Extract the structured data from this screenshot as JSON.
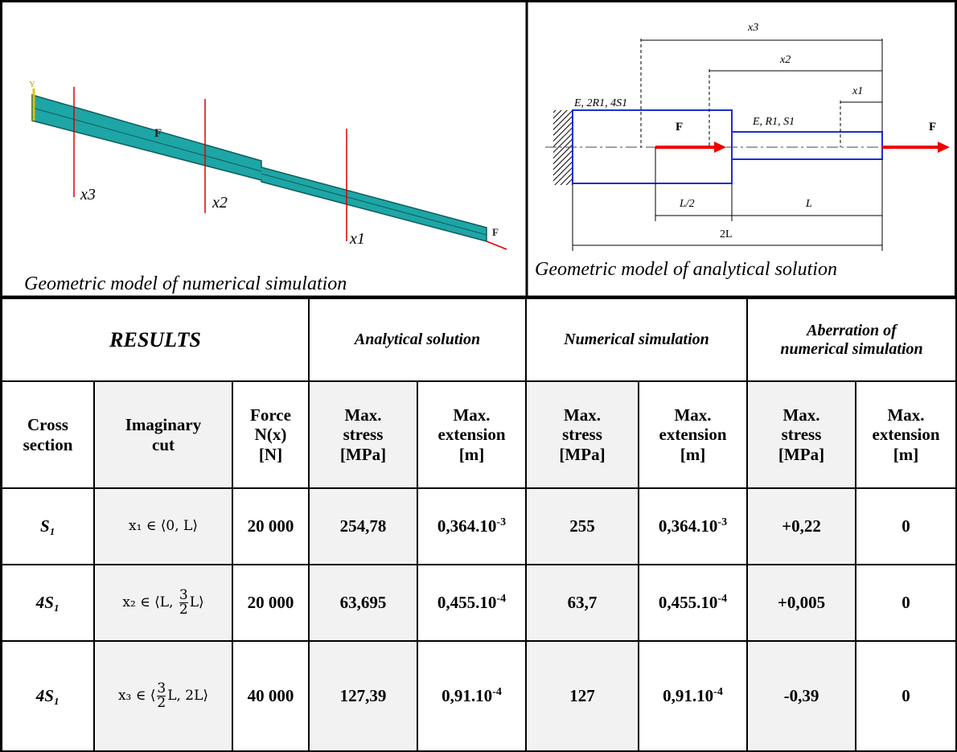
{
  "numerical_model": {
    "caption": "Geometric model of numerical simulation",
    "labels": [
      "x3",
      "x2",
      "x1"
    ],
    "force_labels": [
      "F",
      "F"
    ],
    "axis_label": "Y"
  },
  "analytical_model": {
    "caption": "Geometric model of analytical solution",
    "dimensions": [
      "x3",
      "x2",
      "x1"
    ],
    "sections": [
      "E, 2R1, 4S1",
      "E, R1, S1"
    ],
    "forces": [
      "F",
      "F"
    ],
    "lengths": [
      "L/2",
      "L",
      "2L"
    ]
  },
  "table": {
    "header": [
      "RESULTS",
      "Analytical solution",
      "Numerical simulation",
      [
        "Aberration of",
        "numerical simulation"
      ]
    ],
    "columns": [
      [
        "Cross",
        "section"
      ],
      [
        "Imaginary",
        "cut"
      ],
      [
        "Force",
        "N(x)",
        "[N]"
      ],
      [
        "Max.",
        "stress",
        "[MPa]"
      ],
      [
        "Max.",
        "extension",
        "[m]"
      ],
      [
        "Max.",
        "stress",
        "[MPa]"
      ],
      [
        "Max.",
        "extension",
        "[m]"
      ],
      [
        "Max.",
        "stress",
        "[MPa]"
      ],
      [
        "Max.",
        "extension",
        "[m]"
      ]
    ],
    "rows": [
      [
        "S₁",
        "x₁ ∈ ⟨0, L⟩",
        "20 000",
        "254,78",
        {
          "base": "0,364.10",
          "exp": "-3"
        },
        "255",
        {
          "base": "0,364.10",
          "exp": "-3"
        },
        "+0,22",
        "0"
      ],
      [
        "4S₁",
        {
          "pre": "x₂ ∈ ⟨L, ",
          "num": "3",
          "den": "2",
          "post": "L⟩"
        },
        "20 000",
        "63,695",
        {
          "base": "0,455.10",
          "exp": "-4"
        },
        "63,7",
        {
          "base": "0,455.10",
          "exp": "-4"
        },
        "+0,005",
        "0"
      ],
      [
        "4S₁",
        {
          "pre": "x₃ ∈ ⟨",
          "num": "3",
          "den": "2",
          "post": "L, 2L⟩"
        },
        "40 000",
        "127,39",
        {
          "base": "0,91.10",
          "exp": "-4"
        },
        "127",
        {
          "base": "0,91.10",
          "exp": "-4"
        },
        "-0,39",
        "0"
      ]
    ]
  }
}
